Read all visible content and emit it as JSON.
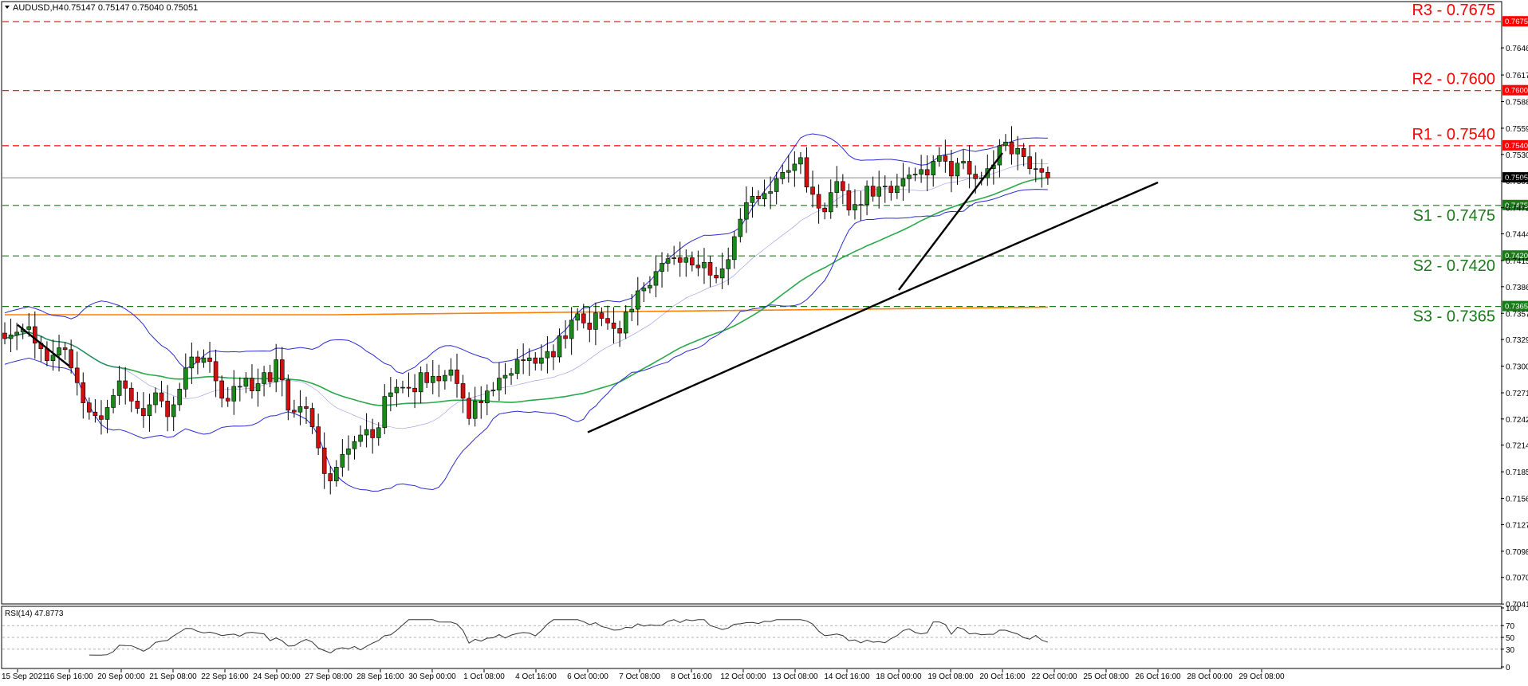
{
  "header": {
    "symbol": "AUDUSD,H4",
    "ohlc": "0.75147 0.75147 0.75040 0.75051"
  },
  "rsi": {
    "label": "RSI(14) 47.8773",
    "ticks": [
      "100",
      "70",
      "50",
      "30",
      "0"
    ]
  },
  "levels": [
    {
      "name": "R3 - 0.7675",
      "value": 0.7675,
      "tag": "0.76750",
      "kind": "resistance"
    },
    {
      "name": "R2 - 0.7600",
      "value": 0.76,
      "tag": "0.76000",
      "kind": "resistance"
    },
    {
      "name": "R1 - 0.7540",
      "value": 0.754,
      "tag": "0.75400",
      "kind": "resistance"
    },
    {
      "name": "S1 - 0.7475",
      "value": 0.7475,
      "tag": "0.74750",
      "kind": "support"
    },
    {
      "name": "S2 - 0.7420",
      "value": 0.742,
      "tag": "0.74200",
      "kind": "support"
    },
    {
      "name": "S3 - 0.7365",
      "value": 0.7365,
      "tag": "0.73650",
      "kind": "support"
    }
  ],
  "current_price": {
    "value": 0.75051,
    "tag": "0.75051"
  },
  "colors": {
    "resistance": "#ff0000",
    "support": "#1a7a1a",
    "bollinger": "#2b2bd6",
    "ma_green": "#2aa84a",
    "ma_orange": "#ff7f00",
    "bull": "#1b8a1b",
    "bear": "#d01010",
    "trendline": "#000000"
  },
  "chart_data": {
    "type": "candlestick",
    "title": "AUDUSD,H4",
    "ylim": [
      0.7042,
      0.7696
    ],
    "y_ticks": [
      "0.76465",
      "0.76170",
      "0.75880",
      "0.75590",
      "0.75305",
      "0.75015",
      "0.74725",
      "0.74440",
      "0.74150",
      "0.73865",
      "0.73575",
      "0.73290",
      "0.73000",
      "0.72710",
      "0.72425",
      "0.72140",
      "0.71850",
      "0.71560",
      "0.71275",
      "0.70985",
      "0.70700",
      "0.70410"
    ],
    "x_labels": [
      "15 Sep 2021",
      "16 Sep 16:00",
      "20 Sep 00:00",
      "21 Sep 08:00",
      "22 Sep 16:00",
      "24 Sep 00:00",
      "27 Sep 08:00",
      "28 Sep 16:00",
      "30 Sep 00:00",
      "1 Oct 08:00",
      "4 Oct 16:00",
      "6 Oct 00:00",
      "7 Oct 08:00",
      "8 Oct 16:00",
      "12 Oct 00:00",
      "13 Oct 08:00",
      "14 Oct 16:00",
      "18 Oct 00:00",
      "19 Oct 08:00",
      "20 Oct 16:00",
      "22 Oct 00:00",
      "25 Oct 08:00",
      "26 Oct 16:00",
      "28 Oct 00:00",
      "29 Oct 08:00"
    ],
    "candles_close": [
      0.733,
      0.7334,
      0.7337,
      0.734,
      0.7343,
      0.7325,
      0.7319,
      0.7306,
      0.7312,
      0.732,
      0.7318,
      0.7298,
      0.7282,
      0.726,
      0.725,
      0.7246,
      0.7242,
      0.7255,
      0.7268,
      0.7284,
      0.7276,
      0.7262,
      0.7254,
      0.7246,
      0.7258,
      0.7271,
      0.7262,
      0.7245,
      0.7258,
      0.7275,
      0.7298,
      0.731,
      0.7304,
      0.7309,
      0.7305,
      0.7284,
      0.7265,
      0.7262,
      0.7278,
      0.7278,
      0.7287,
      0.7273,
      0.7281,
      0.7293,
      0.7283,
      0.7307,
      0.7285,
      0.7252,
      0.725,
      0.7256,
      0.7254,
      0.7234,
      0.7211,
      0.7183,
      0.7175,
      0.719,
      0.7204,
      0.721,
      0.7218,
      0.7225,
      0.7231,
      0.7222,
      0.7233,
      0.7267,
      0.7271,
      0.7277,
      0.7277,
      0.7276,
      0.7272,
      0.7293,
      0.7282,
      0.7289,
      0.7284,
      0.729,
      0.7296,
      0.7281,
      0.7265,
      0.7243,
      0.7262,
      0.726,
      0.7273,
      0.7274,
      0.7287,
      0.729,
      0.7292,
      0.7307,
      0.7306,
      0.7309,
      0.7303,
      0.7309,
      0.7316,
      0.731,
      0.7333,
      0.733,
      0.735,
      0.7357,
      0.7347,
      0.734,
      0.7358,
      0.7352,
      0.7347,
      0.7341,
      0.7336,
      0.7359,
      0.7362,
      0.7382,
      0.7385,
      0.7388,
      0.7403,
      0.7412,
      0.7417,
      0.7418,
      0.7413,
      0.7418,
      0.741,
      0.7407,
      0.7413,
      0.7399,
      0.7396,
      0.7406,
      0.7416,
      0.7441,
      0.746,
      0.7478,
      0.7485,
      0.7482,
      0.7488,
      0.749,
      0.7504,
      0.7511,
      0.7513,
      0.752,
      0.7527,
      0.7495,
      0.7487,
      0.7472,
      0.7468,
      0.7489,
      0.7501,
      0.7491,
      0.747,
      0.7476,
      0.7476,
      0.7496,
      0.7485,
      0.7495,
      0.7496,
      0.7489,
      0.7496,
      0.7504,
      0.7508,
      0.7509,
      0.7514,
      0.7508,
      0.7523,
      0.7529,
      0.7523,
      0.7507,
      0.7521,
      0.7523,
      0.7509,
      0.7504,
      0.7505,
      0.7515,
      0.7519,
      0.754,
      0.7544,
      0.7531,
      0.7537,
      0.7528,
      0.7515,
      0.7515,
      0.7511,
      0.7505
    ],
    "trendlines": [
      {
        "from": [
          "15 Sep 2021",
          0.7345
        ],
        "to": [
          "16 Sep 16:00",
          0.73
        ]
      },
      {
        "from": [
          "6 Oct 00:00",
          0.7228
        ],
        "to": [
          "18 Oct 00:00",
          0.7378
        ]
      },
      {
        "from": [
          "18 Oct 00:00",
          0.7383
        ],
        "to": [
          "20 Oct 16:00",
          0.7532
        ]
      },
      {
        "from": [
          "18 Oct 00:00",
          0.7378
        ],
        "to": [
          "26 Oct 16:00",
          0.75
        ]
      }
    ]
  }
}
